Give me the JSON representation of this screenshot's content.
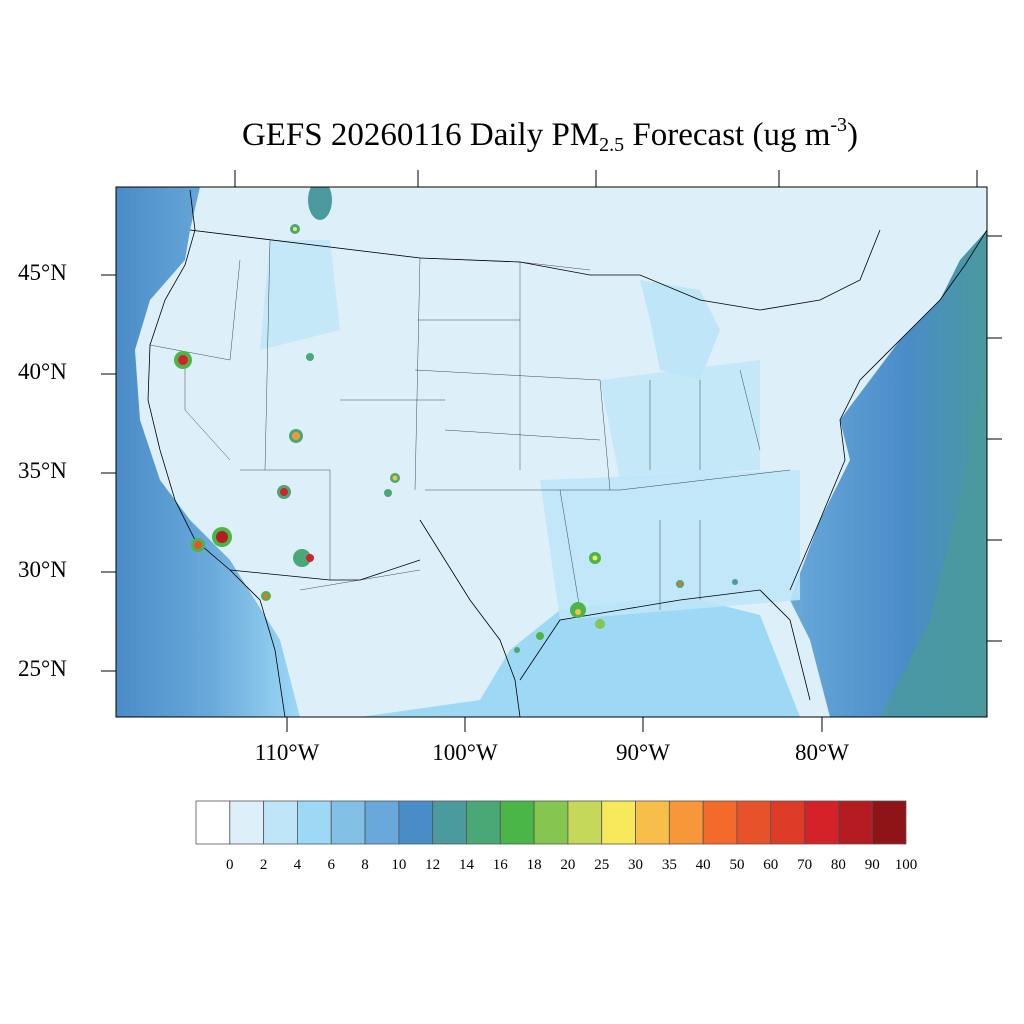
{
  "title": {
    "main": "GEFS 20260116 Daily PM",
    "subscript": "2.5",
    "after": " Forecast (ug m",
    "superscript": "-3",
    "close": ")"
  },
  "map": {
    "lat_labels": [
      "45°N",
      "40°N",
      "35°N",
      "30°N",
      "25°N"
    ],
    "lon_labels": [
      "110°W",
      "100°W",
      "90°W",
      "80°W"
    ],
    "background_color": "#ddf0fa"
  },
  "colorbar": {
    "labels": [
      "0",
      "2",
      "4",
      "6",
      "8",
      "10",
      "12",
      "14",
      "16",
      "18",
      "20",
      "25",
      "30",
      "35",
      "40",
      "50",
      "60",
      "70",
      "80",
      "90",
      "100"
    ],
    "colors": [
      "#ffffff",
      "#ddf0fa",
      "#bee6f8",
      "#9dd8f5",
      "#82c0e6",
      "#68a8da",
      "#4a8cc8",
      "#4a9a9e",
      "#4aa876",
      "#4ab648",
      "#84c650",
      "#c6d85a",
      "#f8e85c",
      "#f8be4a",
      "#f8963a",
      "#f46a2a",
      "#e8522a",
      "#de3c28",
      "#d42228",
      "#b41c22",
      "#8e1418"
    ]
  }
}
